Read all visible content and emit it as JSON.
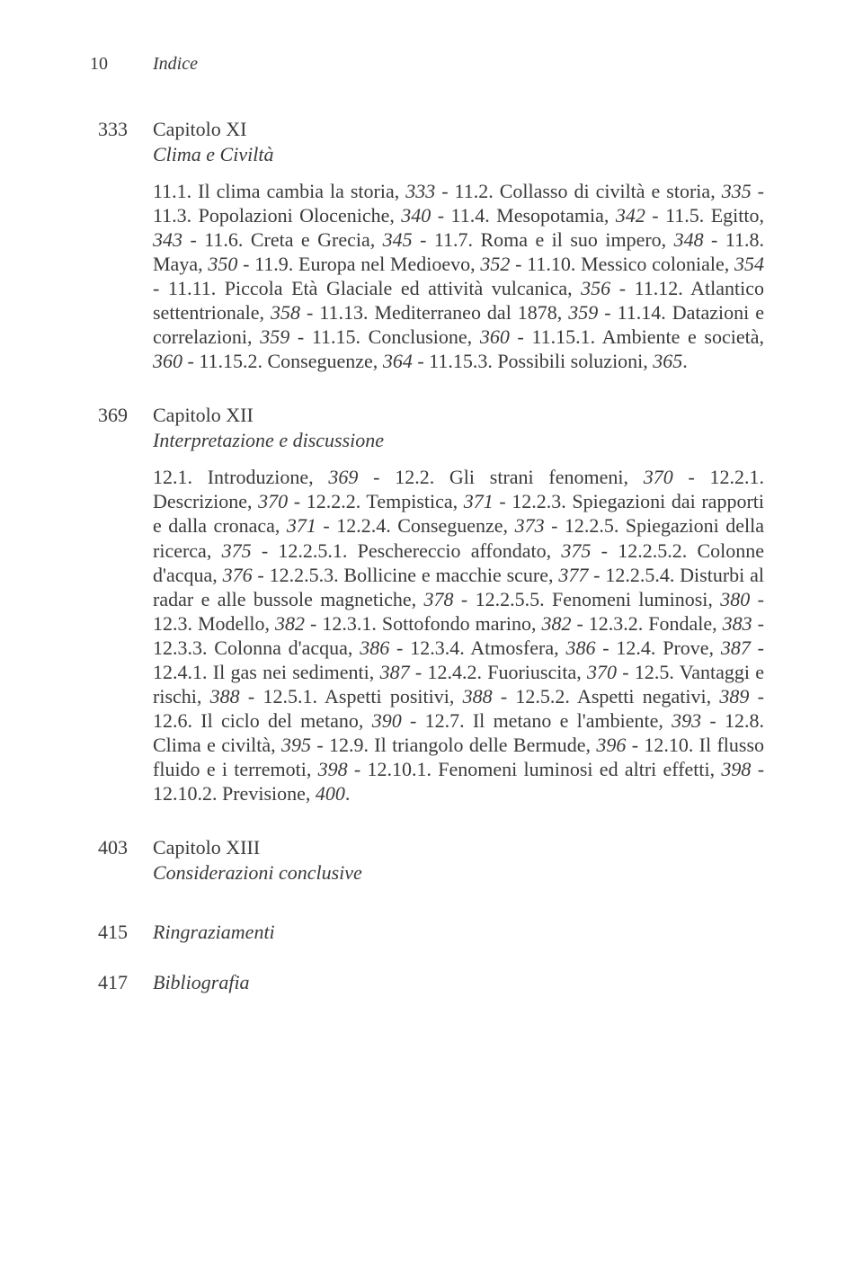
{
  "header": {
    "pageNumber": "10",
    "title": "Indice"
  },
  "chapters": [
    {
      "page": "333",
      "title": "Capitolo XI",
      "subtitle": "Clima e Civiltà",
      "body_html": "11.1. Il clima cambia la storia, <i>333</i> - 11.2. Collasso di civiltà e storia, <i>335</i> - 11.3. Popolazioni Oloceniche, <i>340</i> - 11.4. Mesopotamia, <i>342</i> - 11.5. Egitto, <i>343</i> - 11.6. Creta e Grecia, <i>345</i> - 11.7. Roma e il suo impero, <i>348</i> - 11.8. Maya, <i>350</i> - 11.9. Europa nel Medioevo, <i>352</i> - 11.10. Messico coloniale, <i>354</i> - 11.11. Piccola Età Glaciale ed attività vulcanica, <i>356</i> - 11.12. Atlantico settentrionale, <i>358</i> - 11.13. Mediterraneo dal 1878, <i>359</i> - 11.14. Datazioni e correlazioni, <i>359</i> - 11.15. Conclusione, <i>360</i> - 11.15.1. Ambiente e società, <i>360</i> - 11.15.2. Conseguenze, <i>364</i> - 11.15.3. Possibili soluzioni, <i>365</i>."
    },
    {
      "page": "369",
      "title": "Capitolo XII",
      "subtitle": "Interpretazione e discussione",
      "body_html": "12.1. Introduzione, <i>369</i> - 12.2. Gli strani fenomeni, <i>370</i> - 12.2.1. Descrizione, <i>370</i> - 12.2.2. Tempistica, <i>371</i> - 12.2.3. Spiegazioni dai rapporti e dalla cronaca, <i>371</i> - 12.2.4. Conseguenze, <i>373</i> - 12.2.5. Spiegazioni della ricerca, <i>375</i> - 12.2.5.1. Peschereccio affondato, <i>375</i> - 12.2.5.2. Colonne d'acqua, <i>376</i> - 12.2.5.3. Bollicine e macchie scure, <i>377</i> - 12.2.5.4. Disturbi al radar e alle bussole magnetiche, <i>378</i> - 12.2.5.5. Fenomeni luminosi, <i>380</i> - 12.3. Modello, <i>382</i> - 12.3.1. Sottofondo marino, <i>382</i> - 12.3.2. Fondale, <i>383</i> - 12.3.3. Colonna d'acqua, <i>386</i> - 12.3.4. Atmosfera, <i>386</i> - 12.4. Prove, <i>387</i> - 12.4.1. Il gas nei sedimenti, <i>387</i> - 12.4.2. Fuoriuscita, <i>370</i> - 12.5. Vantaggi e rischi, <i>388</i> - 12.5.1. Aspetti positivi, <i>388</i> - 12.5.2. Aspetti negativi, <i>389</i> - 12.6. Il ciclo del metano, <i>390</i> - 12.7. Il metano e l'ambiente, <i>393</i> - 12.8. Clima e civiltà, <i>395</i> - 12.9. Il triangolo delle Bermude, <i>396</i> - 12.10. Il flusso fluido e i terremoti, <i>398</i> - 12.10.1. Fenomeni luminosi ed altri effetti, <i>398</i> - 12.10.2. Previsione, <i>400</i>."
    },
    {
      "page": "403",
      "title": "Capitolo XIII",
      "subtitle": "Considerazioni conclusive",
      "body_html": ""
    }
  ],
  "simpleEntries": [
    {
      "page": "415",
      "title": "Ringraziamenti"
    },
    {
      "page": "417",
      "title": "Bibliografia"
    }
  ],
  "style": {
    "background_color": "#ffffff",
    "text_color": "#3a3a3a",
    "font_family": "Times New Roman",
    "base_font_size": 22,
    "header_font_size": 20,
    "line_height": 1.23,
    "page_col_width": 70
  }
}
